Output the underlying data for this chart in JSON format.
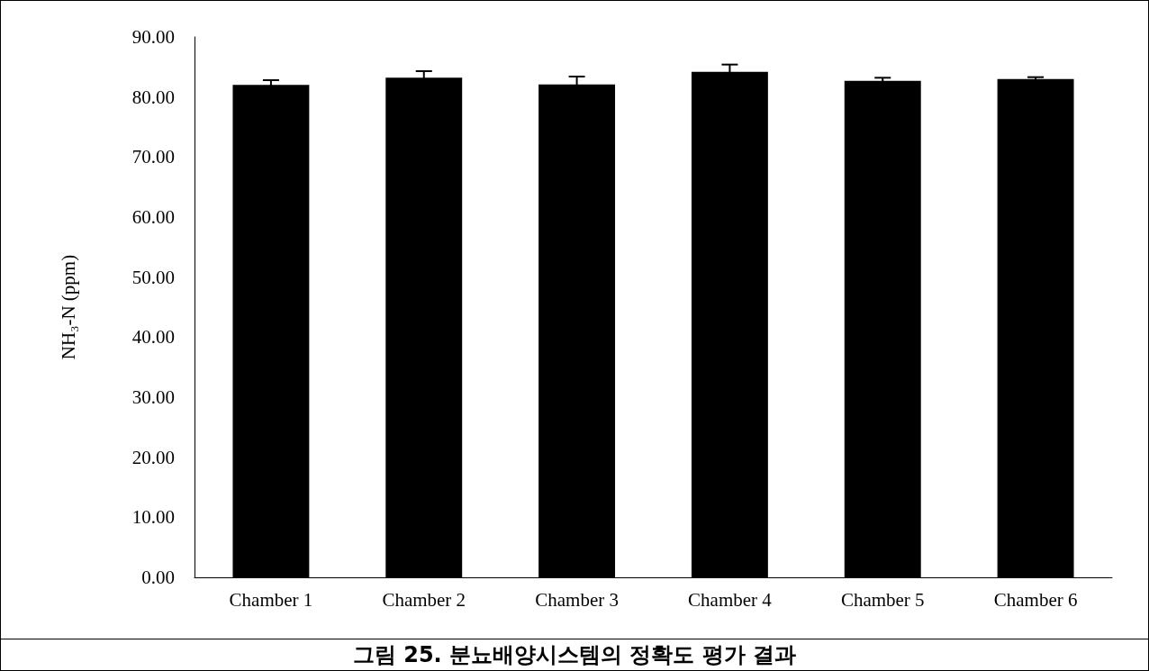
{
  "chart_data": {
    "type": "bar",
    "ylabel": "NH₃-N (ppm)",
    "categories": [
      "Chamber 1",
      "Chamber 2",
      "Chamber 3",
      "Chamber 4",
      "Chamber 5",
      "Chamber 6"
    ],
    "values": [
      82.0,
      83.2,
      82.1,
      84.2,
      82.7,
      83.0
    ],
    "errors": [
      0.8,
      1.1,
      1.3,
      1.2,
      0.5,
      0.3
    ],
    "color": "#000000",
    "ylim": [
      0,
      90
    ],
    "yticks": [
      {
        "value": 0,
        "label": "0.00"
      },
      {
        "value": 10,
        "label": "10.00"
      },
      {
        "value": 20,
        "label": "20.00"
      },
      {
        "value": 30,
        "label": "30.00"
      },
      {
        "value": 40,
        "label": "40.00"
      },
      {
        "value": 50,
        "label": "50.00"
      },
      {
        "value": 60,
        "label": "60.00"
      },
      {
        "value": 70,
        "label": "70.00"
      },
      {
        "value": 80,
        "label": "80.00"
      },
      {
        "value": 90,
        "label": "90.00"
      }
    ],
    "grid": false,
    "annotations": [
      "그림 25. 분뇨배양시스템의 정확도 평가 결과"
    ]
  }
}
